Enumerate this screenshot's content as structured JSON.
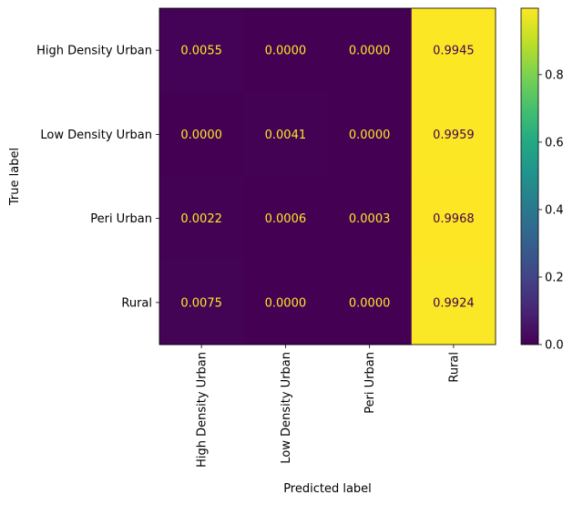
{
  "chart_data": {
    "type": "heatmap",
    "xlabel": "Predicted label",
    "ylabel": "True label",
    "x_categories": [
      "High Density Urban",
      "Low Density Urban",
      "Peri Urban",
      "Rural"
    ],
    "y_categories": [
      "High Density Urban",
      "Low Density Urban",
      "Peri Urban",
      "Rural"
    ],
    "values": [
      [
        0.0055,
        0.0,
        0.0,
        0.9945
      ],
      [
        0.0,
        0.0041,
        0.0,
        0.9959
      ],
      [
        0.0022,
        0.0006,
        0.0003,
        0.9968
      ],
      [
        0.0075,
        0.0,
        0.0,
        0.9924
      ]
    ],
    "cell_labels": [
      [
        "0.0055",
        "0.0000",
        "0.0000",
        "0.9945"
      ],
      [
        "0.0000",
        "0.0041",
        "0.0000",
        "0.9959"
      ],
      [
        "0.0022",
        "0.0006",
        "0.0003",
        "0.9968"
      ],
      [
        "0.0075",
        "0.0000",
        "0.0000",
        "0.9924"
      ]
    ],
    "colormap": "viridis",
    "colorbar": {
      "range": [
        0,
        0.9968
      ],
      "ticks": [
        0.0,
        0.2,
        0.4,
        0.6,
        0.8
      ],
      "tick_labels": [
        "0.0",
        "0.2",
        "0.4",
        "0.6",
        "0.8"
      ]
    },
    "colors": {
      "low": "#440154",
      "high": "#fde725"
    }
  }
}
